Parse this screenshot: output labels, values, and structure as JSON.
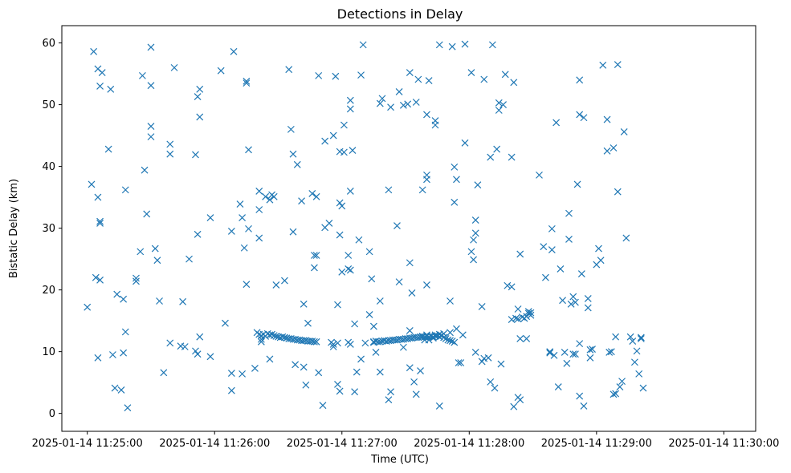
{
  "chart_data": {
    "type": "scatter",
    "title": "Detections in Delay",
    "xlabel": "Time (UTC)",
    "ylabel": "Bistatic Delay (km)",
    "x_unit": "time (HH:MM:SS on 2025-01-14)",
    "xlim": [
      "11:24:48",
      "11:30:15"
    ],
    "ylim": [
      -2.9,
      62.8
    ],
    "x_ticks": [
      {
        "value": "11:25:00",
        "label": "2025-01-14 11:25:00"
      },
      {
        "value": "11:26:00",
        "label": "2025-01-14 11:26:00"
      },
      {
        "value": "11:27:00",
        "label": "2025-01-14 11:27:00"
      },
      {
        "value": "11:28:00",
        "label": "2025-01-14 11:28:00"
      },
      {
        "value": "11:29:00",
        "label": "2025-01-14 11:29:00"
      },
      {
        "value": "11:30:00",
        "label": "2025-01-14 11:30:00"
      }
    ],
    "y_ticks": [
      0,
      10,
      20,
      30,
      40,
      50,
      60
    ],
    "marker": "x",
    "color": "#1f77b4",
    "grid": false,
    "legend": "none",
    "points": [
      [
        "11:25:00",
        17.2
      ],
      [
        "11:25:02",
        37.1
      ],
      [
        "11:25:03",
        58.6
      ],
      [
        "11:25:04",
        22.0
      ],
      [
        "11:25:05",
        9.0
      ],
      [
        "11:25:05",
        35.0
      ],
      [
        "11:25:05",
        55.8
      ],
      [
        "11:25:06",
        53.0
      ],
      [
        "11:25:06",
        21.6
      ],
      [
        "11:25:06",
        31.1
      ],
      [
        "11:25:06",
        30.8
      ],
      [
        "11:25:07",
        55.2
      ],
      [
        "11:25:10",
        42.8
      ],
      [
        "11:25:11",
        52.5
      ],
      [
        "11:25:12",
        9.5
      ],
      [
        "11:25:13",
        4.1
      ],
      [
        "11:25:14",
        19.3
      ],
      [
        "11:25:16",
        3.8
      ],
      [
        "11:25:17",
        18.5
      ],
      [
        "11:25:17",
        9.8
      ],
      [
        "11:25:18",
        36.2
      ],
      [
        "11:25:18",
        13.2
      ],
      [
        "11:25:19",
        0.9
      ],
      [
        "11:25:23",
        21.9
      ],
      [
        "11:25:23",
        21.4
      ],
      [
        "11:25:25",
        26.2
      ],
      [
        "11:25:26",
        54.7
      ],
      [
        "11:25:27",
        39.4
      ],
      [
        "11:25:28",
        32.3
      ],
      [
        "11:25:30",
        59.3
      ],
      [
        "11:25:30",
        53.1
      ],
      [
        "11:25:30",
        46.5
      ],
      [
        "11:25:30",
        44.8
      ],
      [
        "11:25:32",
        26.7
      ],
      [
        "11:25:33",
        24.8
      ],
      [
        "11:25:34",
        18.2
      ],
      [
        "11:25:36",
        6.6
      ],
      [
        "11:25:39",
        43.6
      ],
      [
        "11:25:39",
        42.0
      ],
      [
        "11:25:39",
        11.4
      ],
      [
        "11:25:41",
        56.0
      ],
      [
        "11:25:44",
        10.9
      ],
      [
        "11:25:45",
        18.1
      ],
      [
        "11:25:46",
        10.8
      ],
      [
        "11:25:48",
        25.0
      ],
      [
        "11:25:51",
        41.9
      ],
      [
        "11:25:51",
        10.1
      ],
      [
        "11:25:52",
        51.3
      ],
      [
        "11:25:52",
        29.0
      ],
      [
        "11:25:52",
        9.6
      ],
      [
        "11:25:53",
        52.5
      ],
      [
        "11:25:53",
        48.0
      ],
      [
        "11:25:53",
        12.4
      ],
      [
        "11:25:58",
        31.7
      ],
      [
        "11:25:58",
        9.2
      ],
      [
        "11:26:03",
        55.5
      ],
      [
        "11:26:05",
        14.6
      ],
      [
        "11:26:08",
        3.7
      ],
      [
        "11:26:08",
        6.5
      ],
      [
        "11:26:08",
        29.5
      ],
      [
        "11:26:09",
        58.6
      ],
      [
        "11:26:12",
        33.9
      ],
      [
        "11:26:13",
        31.7
      ],
      [
        "11:26:13",
        6.4
      ],
      [
        "11:26:14",
        26.8
      ],
      [
        "11:26:15",
        53.8
      ],
      [
        "11:26:15",
        53.5
      ],
      [
        "11:26:15",
        20.9
      ],
      [
        "11:26:16",
        42.7
      ],
      [
        "11:26:16",
        29.9
      ],
      [
        "11:26:19",
        7.3
      ],
      [
        "11:26:21",
        36.0
      ],
      [
        "11:26:21",
        33.0
      ],
      [
        "11:26:21",
        28.4
      ],
      [
        "11:26:24",
        35.1
      ],
      [
        "11:26:26",
        8.8
      ],
      [
        "11:26:26",
        34.6
      ],
      [
        "11:26:27",
        35.4
      ],
      [
        "11:26:28",
        35.1
      ],
      [
        "11:26:29",
        20.8
      ],
      [
        "11:26:33",
        21.5
      ],
      [
        "11:26:20",
        13.1
      ],
      [
        "11:26:21",
        12.8
      ],
      [
        "11:26:22",
        12.6
      ],
      [
        "11:26:23",
        12.8
      ],
      [
        "11:26:24",
        12.5
      ],
      [
        "11:26:25",
        12.9
      ],
      [
        "11:26:26",
        12.7
      ],
      [
        "11:26:27",
        12.8
      ],
      [
        "11:26:28",
        12.6
      ],
      [
        "11:26:29",
        12.5
      ],
      [
        "11:26:30",
        12.4
      ],
      [
        "11:26:31",
        12.3
      ],
      [
        "11:26:32",
        12.4
      ],
      [
        "11:26:33",
        12.3
      ],
      [
        "11:26:34",
        12.2
      ],
      [
        "11:26:35",
        12.1
      ],
      [
        "11:26:36",
        12.1
      ],
      [
        "11:26:37",
        12.0
      ],
      [
        "11:26:38",
        12.0
      ],
      [
        "11:26:39",
        11.9
      ],
      [
        "11:26:40",
        11.9
      ],
      [
        "11:26:41",
        11.8
      ],
      [
        "11:26:42",
        11.8
      ],
      [
        "11:26:43",
        11.8
      ],
      [
        "11:26:44",
        11.7
      ],
      [
        "11:26:45",
        11.7
      ],
      [
        "11:26:46",
        11.7
      ],
      [
        "11:26:47",
        11.6
      ],
      [
        "11:26:48",
        11.6
      ],
      [
        "11:26:22",
        12.0
      ],
      [
        "11:26:22",
        11.6
      ],
      [
        "11:26:35",
        55.7
      ],
      [
        "11:26:36",
        46.0
      ],
      [
        "11:26:37",
        42.0
      ],
      [
        "11:26:37",
        29.4
      ],
      [
        "11:26:38",
        7.9
      ],
      [
        "11:26:39",
        40.3
      ],
      [
        "11:26:41",
        34.4
      ],
      [
        "11:26:42",
        17.7
      ],
      [
        "11:26:42",
        7.5
      ],
      [
        "11:26:43",
        4.6
      ],
      [
        "11:26:44",
        14.6
      ],
      [
        "11:26:46",
        35.6
      ],
      [
        "11:26:47",
        23.6
      ],
      [
        "11:26:47",
        25.6
      ],
      [
        "11:26:48",
        35.1
      ],
      [
        "11:26:48",
        25.6
      ],
      [
        "11:26:49",
        54.7
      ],
      [
        "11:26:49",
        6.6
      ],
      [
        "11:26:51",
        1.3
      ],
      [
        "11:26:52",
        44.1
      ],
      [
        "11:26:52",
        30.1
      ],
      [
        "11:26:54",
        30.8
      ],
      [
        "11:26:55",
        11.5
      ],
      [
        "11:26:56",
        10.8
      ],
      [
        "11:26:56",
        11.2
      ],
      [
        "11:26:58",
        11.4
      ],
      [
        "11:26:56",
        45.0
      ],
      [
        "11:26:57",
        54.6
      ],
      [
        "11:26:58",
        17.6
      ],
      [
        "11:26:58",
        4.7
      ],
      [
        "11:26:59",
        34.1
      ],
      [
        "11:26:59",
        42.4
      ],
      [
        "11:26:59",
        28.9
      ],
      [
        "11:26:59",
        3.6
      ],
      [
        "11:27:00",
        33.6
      ],
      [
        "11:27:00",
        22.9
      ],
      [
        "11:27:01",
        46.7
      ],
      [
        "11:27:01",
        42.3
      ],
      [
        "11:27:03",
        23.4
      ],
      [
        "11:27:03",
        25.6
      ],
      [
        "11:27:03",
        11.5
      ],
      [
        "11:27:04",
        23.2
      ],
      [
        "11:27:04",
        49.3
      ],
      [
        "11:27:04",
        50.7
      ],
      [
        "11:27:04",
        36.0
      ],
      [
        "11:27:04",
        11.2
      ],
      [
        "11:27:05",
        42.6
      ],
      [
        "11:27:06",
        14.5
      ],
      [
        "11:27:06",
        3.5
      ],
      [
        "11:27:07",
        6.7
      ],
      [
        "11:27:08",
        28.1
      ],
      [
        "11:27:09",
        8.8
      ],
      [
        "11:27:09",
        54.8
      ],
      [
        "11:27:10",
        59.7
      ],
      [
        "11:27:11",
        11.4
      ],
      [
        "11:27:13",
        26.2
      ],
      [
        "11:27:13",
        16.0
      ],
      [
        "11:27:14",
        21.8
      ],
      [
        "11:27:15",
        14.1
      ],
      [
        "11:27:15",
        11.5
      ],
      [
        "11:27:16",
        9.9
      ],
      [
        "11:27:18",
        18.2
      ],
      [
        "11:27:18",
        6.7
      ],
      [
        "11:27:18",
        50.2
      ],
      [
        "11:27:19",
        51.0
      ],
      [
        "11:27:22",
        36.2
      ],
      [
        "11:27:22",
        2.2
      ],
      [
        "11:27:23",
        49.6
      ],
      [
        "11:27:23",
        3.5
      ],
      [
        "11:27:26",
        30.4
      ],
      [
        "11:27:27",
        52.1
      ],
      [
        "11:27:27",
        21.3
      ],
      [
        "11:27:29",
        10.7
      ],
      [
        "11:27:29",
        49.9
      ],
      [
        "11:27:31",
        50.1
      ],
      [
        "11:27:32",
        55.2
      ],
      [
        "11:27:32",
        24.4
      ],
      [
        "11:27:32",
        7.4
      ],
      [
        "11:27:33",
        19.5
      ],
      [
        "11:27:34",
        5.1
      ],
      [
        "11:27:35",
        50.4
      ],
      [
        "11:27:35",
        3.1
      ],
      [
        "11:27:36",
        54.1
      ],
      [
        "11:27:37",
        6.9
      ],
      [
        "11:27:38",
        36.2
      ],
      [
        "11:27:15",
        11.6
      ],
      [
        "11:27:16",
        11.7
      ],
      [
        "11:27:17",
        11.6
      ],
      [
        "11:27:18",
        11.6
      ],
      [
        "11:27:19",
        11.7
      ],
      [
        "11:27:20",
        11.8
      ],
      [
        "11:27:21",
        11.7
      ],
      [
        "11:27:22",
        11.8
      ],
      [
        "11:27:23",
        11.8
      ],
      [
        "11:27:24",
        11.9
      ],
      [
        "11:27:25",
        11.9
      ],
      [
        "11:27:26",
        11.9
      ],
      [
        "11:27:27",
        12.0
      ],
      [
        "11:27:28",
        12.0
      ],
      [
        "11:27:29",
        12.0
      ],
      [
        "11:27:30",
        12.1
      ],
      [
        "11:27:31",
        12.1
      ],
      [
        "11:27:32",
        12.2
      ],
      [
        "11:27:33",
        12.2
      ],
      [
        "11:27:34",
        12.3
      ],
      [
        "11:27:35",
        12.3
      ],
      [
        "11:27:36",
        12.3
      ],
      [
        "11:27:37",
        12.4
      ],
      [
        "11:27:38",
        12.4
      ],
      [
        "11:27:39",
        12.4
      ],
      [
        "11:27:40",
        12.5
      ],
      [
        "11:27:41",
        12.4
      ],
      [
        "11:27:42",
        12.5
      ],
      [
        "11:27:43",
        12.4
      ],
      [
        "11:27:44",
        12.5
      ],
      [
        "11:27:45",
        12.6
      ],
      [
        "11:27:46",
        12.4
      ],
      [
        "11:27:47",
        12.6
      ],
      [
        "11:27:48",
        12.3
      ],
      [
        "11:27:49",
        12.1
      ],
      [
        "11:27:50",
        11.9
      ],
      [
        "11:27:51",
        11.8
      ],
      [
        "11:27:52",
        11.7
      ],
      [
        "11:27:53",
        11.5
      ],
      [
        "11:27:32",
        13.4
      ],
      [
        "11:27:38",
        12.5
      ],
      [
        "11:27:39",
        11.9
      ],
      [
        "11:27:40",
        12.7
      ],
      [
        "11:27:41",
        11.9
      ],
      [
        "11:27:43",
        12.2
      ],
      [
        "11:27:44",
        12.7
      ],
      [
        "11:27:46",
        12.8
      ],
      [
        "11:27:48",
        12.9
      ],
      [
        "11:27:40",
        48.4
      ],
      [
        "11:27:40",
        38.6
      ],
      [
        "11:27:40",
        37.9
      ],
      [
        "11:27:40",
        20.8
      ],
      [
        "11:27:41",
        53.9
      ],
      [
        "11:27:44",
        46.7
      ],
      [
        "11:27:44",
        47.4
      ],
      [
        "11:27:46",
        59.7
      ],
      [
        "11:27:46",
        1.2
      ],
      [
        "11:27:51",
        18.2
      ],
      [
        "11:27:51",
        13.1
      ],
      [
        "11:27:52",
        59.4
      ],
      [
        "11:27:53",
        39.9
      ],
      [
        "11:27:53",
        34.2
      ],
      [
        "11:27:54",
        13.7
      ],
      [
        "11:27:54",
        37.9
      ],
      [
        "11:27:55",
        8.2
      ],
      [
        "11:27:56",
        8.2
      ],
      [
        "11:27:57",
        12.7
      ],
      [
        "11:27:58",
        43.8
      ],
      [
        "11:27:58",
        59.8
      ],
      [
        "11:28:01",
        55.2
      ],
      [
        "11:28:01",
        26.2
      ],
      [
        "11:28:02",
        28.1
      ],
      [
        "11:28:02",
        24.9
      ],
      [
        "11:28:03",
        31.3
      ],
      [
        "11:28:03",
        29.2
      ],
      [
        "11:28:03",
        9.9
      ],
      [
        "11:28:04",
        37.0
      ],
      [
        "11:28:06",
        17.3
      ],
      [
        "11:28:06",
        8.4
      ],
      [
        "11:28:07",
        54.1
      ],
      [
        "11:28:07",
        8.9
      ],
      [
        "11:28:09",
        9.0
      ],
      [
        "11:28:10",
        41.5
      ],
      [
        "11:28:10",
        5.1
      ],
      [
        "11:28:11",
        59.7
      ],
      [
        "11:28:12",
        4.1
      ],
      [
        "11:28:13",
        42.8
      ],
      [
        "11:28:14",
        50.3
      ],
      [
        "11:28:14",
        49.1
      ],
      [
        "11:28:15",
        8.0
      ],
      [
        "11:28:16",
        50.0
      ],
      [
        "11:28:17",
        54.9
      ],
      [
        "11:28:18",
        20.7
      ],
      [
        "11:28:20",
        41.5
      ],
      [
        "11:28:21",
        53.6
      ],
      [
        "11:28:20",
        20.5
      ],
      [
        "11:28:20",
        15.2
      ],
      [
        "11:28:21",
        1.1
      ],
      [
        "11:28:22",
        15.4
      ],
      [
        "11:28:23",
        2.6
      ],
      [
        "11:28:23",
        15.3
      ],
      [
        "11:28:23",
        16.9
      ],
      [
        "11:28:24",
        12.1
      ],
      [
        "11:28:24",
        25.8
      ],
      [
        "11:28:24",
        2.2
      ],
      [
        "11:28:25",
        15.6
      ],
      [
        "11:28:26",
        15.4
      ],
      [
        "11:28:27",
        12.1
      ],
      [
        "11:28:27",
        15.7
      ],
      [
        "11:28:28",
        16.2
      ],
      [
        "11:28:28",
        16.5
      ],
      [
        "11:28:29",
        15.9
      ],
      [
        "11:28:29",
        16.3
      ],
      [
        "11:28:33",
        38.6
      ],
      [
        "11:28:35",
        27.0
      ],
      [
        "11:28:36",
        22.0
      ],
      [
        "11:28:38",
        10.0
      ],
      [
        "11:28:38",
        9.8
      ],
      [
        "11:28:39",
        29.9
      ],
      [
        "11:28:39",
        26.5
      ],
      [
        "11:28:40",
        9.4
      ],
      [
        "11:28:41",
        47.1
      ],
      [
        "11:28:42",
        4.3
      ],
      [
        "11:28:43",
        23.4
      ],
      [
        "11:28:44",
        18.3
      ],
      [
        "11:28:45",
        9.9
      ],
      [
        "11:28:46",
        8.1
      ],
      [
        "11:28:47",
        32.4
      ],
      [
        "11:28:47",
        28.2
      ],
      [
        "11:28:48",
        17.7
      ],
      [
        "11:28:49",
        18.9
      ],
      [
        "11:28:49",
        9.6
      ],
      [
        "11:28:50",
        9.6
      ],
      [
        "11:28:50",
        18.0
      ],
      [
        "11:28:51",
        37.1
      ],
      [
        "11:28:52",
        11.3
      ],
      [
        "11:28:52",
        2.8
      ],
      [
        "11:28:52",
        54.0
      ],
      [
        "11:28:52",
        48.4
      ],
      [
        "11:28:53",
        22.6
      ],
      [
        "11:28:54",
        47.9
      ],
      [
        "11:28:54",
        1.2
      ],
      [
        "11:28:56",
        17.1
      ],
      [
        "11:28:56",
        18.6
      ],
      [
        "11:28:57",
        10.3
      ],
      [
        "11:28:57",
        9.0
      ],
      [
        "11:28:58",
        10.4
      ],
      [
        "11:29:00",
        24.1
      ],
      [
        "11:29:01",
        26.7
      ],
      [
        "11:29:02",
        24.8
      ],
      [
        "11:29:03",
        56.4
      ],
      [
        "11:29:05",
        42.5
      ],
      [
        "11:29:05",
        47.6
      ],
      [
        "11:29:06",
        9.9
      ],
      [
        "11:29:07",
        10.0
      ],
      [
        "11:29:08",
        3.1
      ],
      [
        "11:29:08",
        43.0
      ],
      [
        "11:29:09",
        12.4
      ],
      [
        "11:29:09",
        3.2
      ],
      [
        "11:29:10",
        56.5
      ],
      [
        "11:29:10",
        35.9
      ],
      [
        "11:29:11",
        4.3
      ],
      [
        "11:29:12",
        5.2
      ],
      [
        "11:29:13",
        45.6
      ],
      [
        "11:29:14",
        28.4
      ],
      [
        "11:29:16",
        12.4
      ],
      [
        "11:29:17",
        11.7
      ],
      [
        "11:29:18",
        8.3
      ],
      [
        "11:29:19",
        10.1
      ],
      [
        "11:29:20",
        6.4
      ],
      [
        "11:29:21",
        12.1
      ],
      [
        "11:29:21",
        12.3
      ],
      [
        "11:29:22",
        4.1
      ]
    ]
  }
}
